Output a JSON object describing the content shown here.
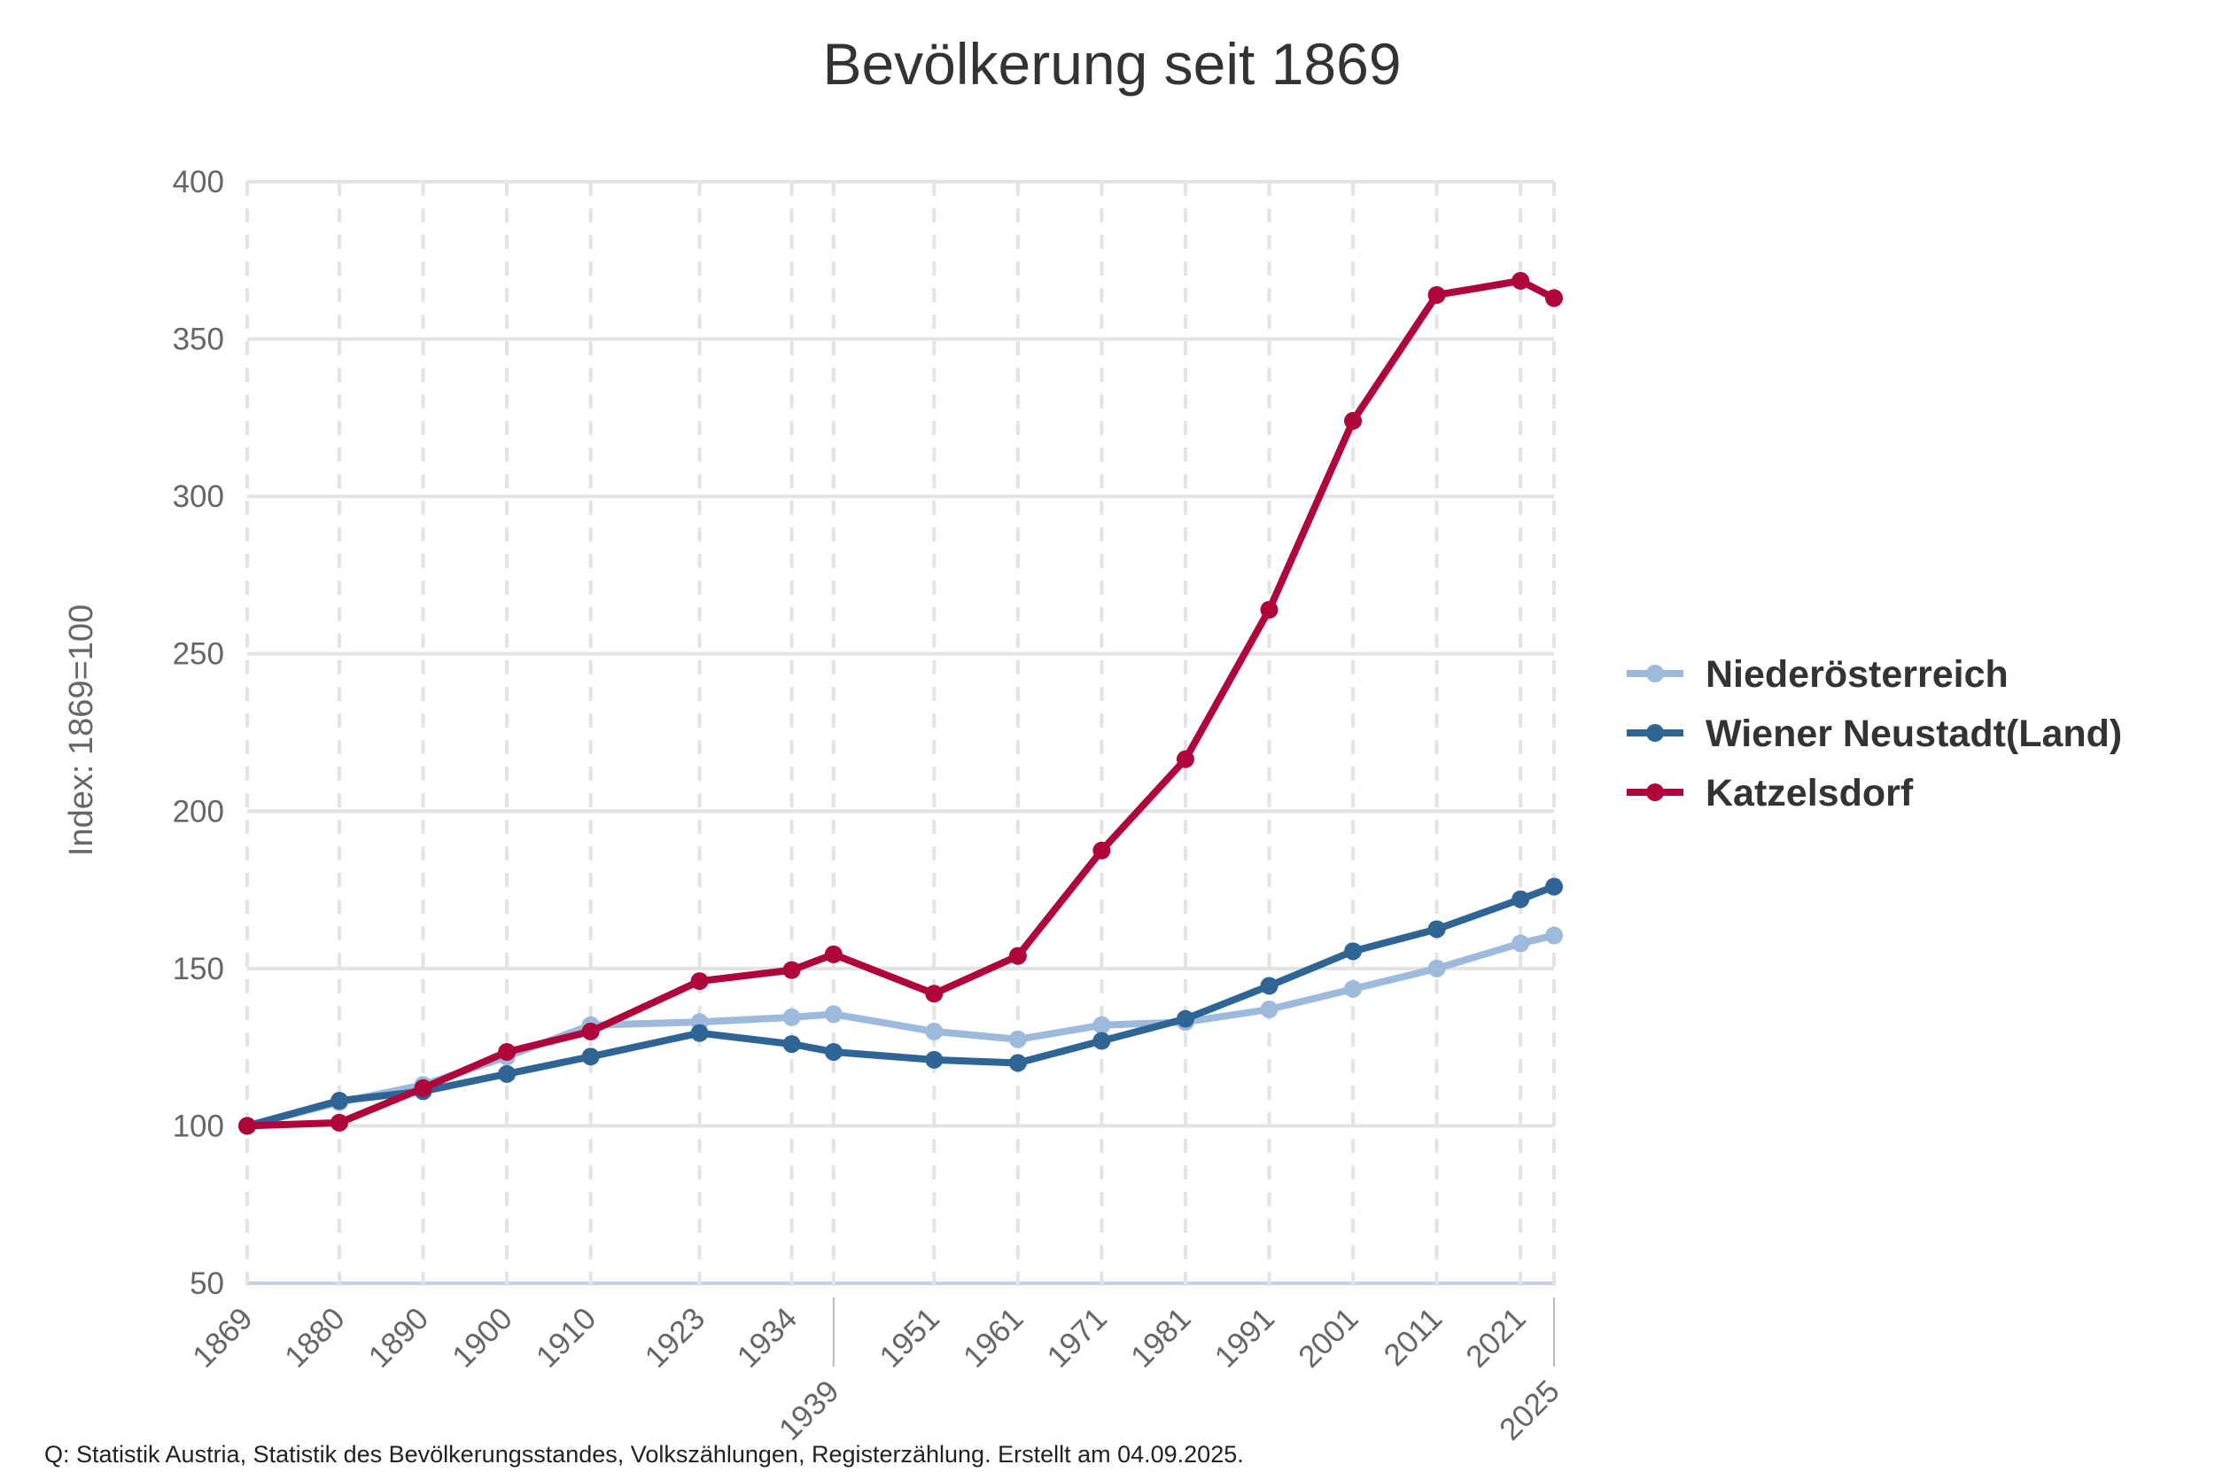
{
  "chart_data": {
    "type": "line",
    "title": "Bevölkerung seit 1869",
    "ylabel": "Index: 1869=100",
    "xlabel": "",
    "ylim": [
      50,
      400
    ],
    "yticks": [
      50,
      100,
      150,
      200,
      250,
      300,
      350,
      400
    ],
    "x": [
      1869,
      1880,
      1890,
      1900,
      1910,
      1923,
      1934,
      1939,
      1951,
      1961,
      1971,
      1981,
      1991,
      2001,
      2011,
      2021,
      2025
    ],
    "grid": true,
    "legend_position": "right",
    "series": [
      {
        "name": "Niederösterreich",
        "color": "#9dbadc",
        "values": [
          100,
          107.5,
          113,
          122,
          132,
          133,
          134.5,
          135.5,
          130,
          127.5,
          132,
          133,
          137,
          143.5,
          150,
          158,
          160.5
        ]
      },
      {
        "name": "Wiener Neustadt(Land)",
        "color": "#2e6594",
        "values": [
          100,
          108,
          111,
          116.5,
          122,
          129.5,
          126,
          123.5,
          121,
          120,
          127,
          134,
          144.5,
          155.5,
          162.5,
          172,
          176
        ]
      },
      {
        "name": "Katzelsdorf",
        "color": "#b0053a",
        "values": [
          100,
          101,
          112,
          123.5,
          130,
          146,
          149.5,
          154.5,
          142,
          154,
          187.5,
          216.5,
          264,
          324,
          364,
          368.5,
          363
        ]
      }
    ],
    "source_note": "Q: Statistik Austria, Statistik des Bevölkerungsstandes, Volkszählungen, Registerzählung. Erstellt am 04.09.2025."
  }
}
